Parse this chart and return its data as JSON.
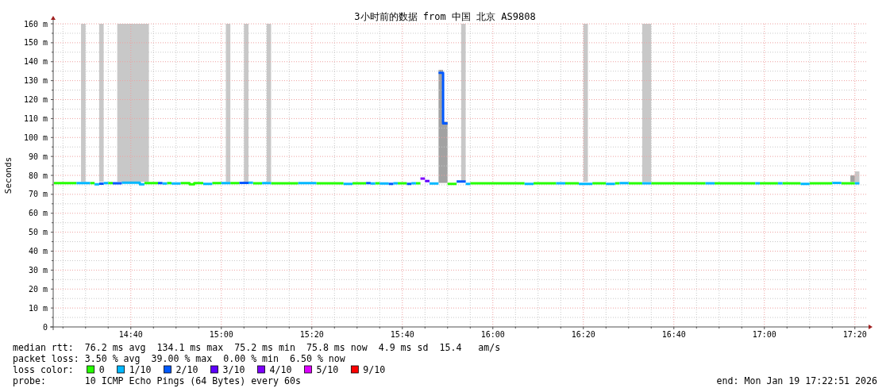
{
  "chart_data": {
    "type": "line",
    "title": "3小时前的数据 from 中国 北京 AS9808",
    "ylabel": "Seconds",
    "xlim": [
      14.3808,
      17.3808
    ],
    "ylim": [
      0,
      160
    ],
    "xticks": [
      {
        "value": 14.4167,
        "label": null
      },
      {
        "value": 14.5,
        "label": null
      },
      {
        "value": 14.5833,
        "label": null
      },
      {
        "value": 14.6667,
        "label": "14:40"
      },
      {
        "value": 14.75,
        "label": null
      },
      {
        "value": 14.8333,
        "label": null
      },
      {
        "value": 14.9167,
        "label": null
      },
      {
        "value": 15,
        "label": "15:00"
      },
      {
        "value": 15.0833,
        "label": null
      },
      {
        "value": 15.1667,
        "label": null
      },
      {
        "value": 15.25,
        "label": null
      },
      {
        "value": 15.3333,
        "label": "15:20"
      },
      {
        "value": 15.4167,
        "label": null
      },
      {
        "value": 15.5,
        "label": null
      },
      {
        "value": 15.5833,
        "label": null
      },
      {
        "value": 15.6667,
        "label": "15:40"
      },
      {
        "value": 15.75,
        "label": null
      },
      {
        "value": 15.8333,
        "label": null
      },
      {
        "value": 15.9167,
        "label": null
      },
      {
        "value": 16,
        "label": "16:00"
      },
      {
        "value": 16.0833,
        "label": null
      },
      {
        "value": 16.1667,
        "label": null
      },
      {
        "value": 16.25,
        "label": null
      },
      {
        "value": 16.3333,
        "label": "16:20"
      },
      {
        "value": 16.4167,
        "label": null
      },
      {
        "value": 16.5,
        "label": null
      },
      {
        "value": 16.5833,
        "label": null
      },
      {
        "value": 16.6667,
        "label": "16:40"
      },
      {
        "value": 16.75,
        "label": null
      },
      {
        "value": 16.8333,
        "label": null
      },
      {
        "value": 16.9167,
        "label": null
      },
      {
        "value": 17,
        "label": "17:00"
      },
      {
        "value": 17.0833,
        "label": null
      },
      {
        "value": 17.1667,
        "label": null
      },
      {
        "value": 17.25,
        "label": null
      },
      {
        "value": 17.3333,
        "label": "17:20"
      }
    ],
    "yticks": [
      0,
      {
        "value": 5,
        "label": null
      },
      {
        "value": 10,
        "label": "10 m"
      },
      {
        "value": 15,
        "label": null
      },
      {
        "value": 20,
        "label": "20 m"
      },
      {
        "value": 25,
        "label": null
      },
      {
        "value": 30,
        "label": "30 m"
      },
      {
        "value": 35,
        "label": null
      },
      {
        "value": 40,
        "label": "40 m"
      },
      {
        "value": 45,
        "label": null
      },
      {
        "value": 50,
        "label": "50 m"
      },
      {
        "value": 55,
        "label": null
      },
      {
        "value": 60,
        "label": "60 m"
      },
      {
        "value": 65,
        "label": null
      },
      {
        "value": 70,
        "label": "70 m"
      },
      {
        "value": 75,
        "label": null
      },
      {
        "value": 80,
        "label": "80 m"
      },
      {
        "value": 85,
        "label": null
      },
      {
        "value": 90,
        "label": "90 m"
      },
      {
        "value": 95,
        "label": null
      },
      {
        "value": 100,
        "label": "100 m"
      },
      {
        "value": 105,
        "label": null
      },
      {
        "value": 110,
        "label": "110 m"
      },
      {
        "value": 115,
        "label": null
      },
      {
        "value": 120,
        "label": "120 m"
      },
      {
        "value": 125,
        "label": null
      },
      {
        "value": 130,
        "label": "130 m"
      },
      {
        "value": 135,
        "label": null
      },
      {
        "value": 140,
        "label": "140 m"
      },
      {
        "value": 145,
        "label": null
      },
      {
        "value": 150,
        "label": "150 m"
      },
      {
        "value": 155,
        "label": null
      },
      {
        "value": 160,
        "label": "160 m"
      }
    ],
    "grid": true,
    "legend": "bottom",
    "legend_title": "loss color:",
    "annotations": [
      "median rtt:  76.2 ms avg  134.1 ms max  75.2 ms min  75.8 ms now  4.9 ms sd  15.4   am/s",
      "packet loss: 3.50 % avg  39.00 % max  0.00 % min  6.50 % now",
      "probe:       10 ICMP Echo Pings (64 Bytes) every 60s",
      "end: Mon Jan 19 17:22:51 2026"
    ],
    "x": [
      14.3833,
      14.4667,
      14.4667,
      14.5167,
      14.5167,
      14.5333,
      14.5333,
      14.55,
      14.55,
      14.5667,
      14.5667,
      14.5833,
      14.5833,
      14.6,
      14.6,
      14.6333,
      14.6333,
      14.7,
      14.7,
      14.7167,
      14.7167,
      14.7667,
      14.7667,
      14.7833,
      14.7833,
      14.8,
      14.8,
      14.8167,
      14.8167,
      14.85,
      14.85,
      14.8833,
      14.8833,
      14.9,
      14.9,
      14.9333,
      14.9333,
      14.9667,
      14.9667,
      15,
      15,
      15.0333,
      15.0333,
      15.0667,
      15.0667,
      15.1,
      15.1,
      15.1167,
      15.1167,
      15.15,
      15.15,
      15.1833,
      15.1833,
      15.2833,
      15.2833,
      15.35,
      15.35,
      15.45,
      15.45,
      15.4833,
      15.4833,
      15.5333,
      15.5333,
      15.55,
      15.55,
      15.5667,
      15.5667,
      15.5833,
      15.5833,
      15.6167,
      15.6167,
      15.6333,
      15.6333,
      15.65,
      15.65,
      15.6833,
      15.6833,
      15.7,
      15.7,
      15.7167,
      15.7167,
      15.7333,
      15.7333,
      15.75,
      15.75,
      15.7667,
      15.7667,
      15.8,
      15.8,
      15.8167,
      15.8167,
      15.8333,
      15.8333,
      15.8667,
      15.8667,
      15.9,
      15.9,
      15.9167,
      15.9167,
      16.1167,
      16.1167,
      16.15,
      16.15,
      16.2333,
      16.2333,
      16.2667,
      16.2667,
      16.3167,
      16.3167,
      16.3667,
      16.3667,
      16.4167,
      16.4167,
      16.45,
      16.45,
      16.4667,
      16.4667,
      16.5,
      16.5,
      16.55,
      16.55,
      16.5833,
      16.5833,
      16.7833,
      16.7833,
      16.8167,
      16.8167,
      16.9667,
      16.9667,
      16.9833,
      16.9833,
      17.05,
      17.05,
      17.0667,
      17.0667,
      17.1333,
      17.1333,
      17.1667,
      17.1667,
      17.25,
      17.25,
      17.2833,
      17.2833,
      17.3333,
      17.3333,
      17.35
    ],
    "series": [
      {
        "color": "#c8c8c8",
        "x": [
          14.4833,
          14.5
        ],
        "values": [
          null,
          null
        ],
        "lower": [
          76.5,
          76.5
        ],
        "upper": [
          160,
          160
        ]
      },
      {
        "color": "#c8c8c8",
        "x": [
          14.55,
          14.5667
        ],
        "values": [
          null,
          null
        ],
        "lower": [
          76.5,
          76.5
        ],
        "upper": [
          160,
          160
        ]
      },
      {
        "color": "#c8c8c8",
        "x": [
          14.6167,
          14.7333
        ],
        "values": [
          null,
          null
        ],
        "lower": [
          76.5,
          76.5
        ],
        "upper": [
          160,
          160
        ]
      },
      {
        "color": "#c8c8c8",
        "x": [
          15.0167,
          15.0333
        ],
        "values": [
          null,
          null
        ],
        "lower": [
          76.5,
          76.5
        ],
        "upper": [
          160,
          160
        ]
      },
      {
        "color": "#c8c8c8",
        "x": [
          15.0833,
          15.1
        ],
        "values": [
          null,
          null
        ],
        "lower": [
          76.5,
          76.5
        ],
        "upper": [
          160,
          160
        ]
      },
      {
        "color": "#c8c8c8",
        "x": [
          15.1667,
          15.1833
        ],
        "values": [
          null,
          null
        ],
        "lower": [
          76.5,
          76.5
        ],
        "upper": [
          160,
          160
        ]
      },
      {
        "color": "#c8c8c8",
        "x": [
          15.8833,
          15.9
        ],
        "values": [
          null,
          null
        ],
        "lower": [
          76.5,
          76.5
        ],
        "upper": [
          160,
          160
        ]
      },
      {
        "color": "#c8c8c8",
        "x": [
          16.3333,
          16.35
        ],
        "values": [
          null,
          null
        ],
        "lower": [
          76.5,
          76.5
        ],
        "upper": [
          160,
          160
        ]
      },
      {
        "color": "#c8c8c8",
        "x": [
          16.55,
          16.5833
        ],
        "values": [
          null,
          null
        ],
        "lower": [
          76.5,
          76.5
        ],
        "upper": [
          160,
          160
        ]
      },
      {
        "color": "#c8c8c8",
        "x": [
          17.3333,
          17.35
        ],
        "values": [
          null,
          null
        ],
        "lower": [
          76.5,
          76.5
        ],
        "upper": [
          82.1,
          82.1
        ]
      },
      {
        "color": "#a2a2a2",
        "x": [
          15.8,
          15.8167,
          15.8167,
          15.8333
        ],
        "values": [
          null,
          null,
          null,
          null
        ],
        "lower": [
          76,
          76,
          76,
          76
        ],
        "upper": [
          135.7,
          135.7,
          108.4,
          108.4
        ]
      },
      {
        "color": "#a2a2a2",
        "x": [
          17.3167,
          17.3333
        ],
        "values": [
          null,
          null
        ],
        "lower": [
          76.5,
          76.5
        ],
        "upper": [
          80,
          80
        ]
      },
      {
        "name": "0",
        "color": "#26ff00",
        "values": [
          75.9,
          75.9,
          null,
          null,
          75.9,
          75.9,
          null,
          null,
          null,
          null,
          null,
          null,
          75.9,
          75.9,
          null,
          null,
          null,
          null,
          null,
          null,
          75.9,
          75.9,
          null,
          null,
          null,
          null,
          75.9,
          75.9,
          null,
          null,
          75.9,
          75.9,
          75.3,
          75.3,
          75.9,
          75.9,
          null,
          null,
          75.9,
          75.9,
          null,
          null,
          75.9,
          75.9,
          null,
          null,
          null,
          null,
          75.8,
          75.8,
          null,
          null,
          75.8,
          75.8,
          null,
          null,
          75.8,
          75.8,
          null,
          null,
          75.8,
          75.8,
          null,
          null,
          null,
          null,
          75.8,
          75.8,
          null,
          null,
          null,
          null,
          null,
          null,
          75.8,
          75.8,
          null,
          null,
          null,
          null,
          75.8,
          75.8,
          null,
          null,
          null,
          null,
          null,
          null,
          null,
          null,
          null,
          null,
          75.5,
          75.5,
          null,
          null,
          null,
          null,
          75.8,
          75.8,
          null,
          null,
          75.8,
          75.8,
          null,
          null,
          75.8,
          75.8,
          null,
          null,
          75.8,
          75.8,
          null,
          null,
          75.8,
          75.8,
          null,
          null,
          75.8,
          75.8,
          null,
          null,
          75.8,
          75.8,
          null,
          null,
          75.8,
          75.8,
          null,
          null,
          75.8,
          75.8,
          null,
          null,
          75.8,
          75.8,
          null,
          null,
          75.8,
          75.8,
          null,
          null,
          75.8,
          75.8,
          null,
          null
        ]
      },
      {
        "name": "1/10",
        "color": "#00b8ff",
        "values": [
          null,
          null,
          75.9,
          75.9,
          null,
          null,
          75.3,
          75.3,
          null,
          null,
          75.9,
          75.9,
          null,
          null,
          null,
          null,
          76.1,
          76.1,
          75.3,
          75.3,
          null,
          null,
          null,
          null,
          75.7,
          75.7,
          null,
          null,
          75.7,
          75.7,
          null,
          null,
          null,
          null,
          null,
          null,
          75.5,
          75.5,
          null,
          null,
          75.9,
          75.9,
          null,
          null,
          null,
          null,
          76.1,
          76.1,
          null,
          null,
          75.9,
          75.9,
          null,
          null,
          75.9,
          75.9,
          null,
          null,
          75.5,
          75.5,
          null,
          null,
          null,
          null,
          75.7,
          75.7,
          null,
          null,
          75.7,
          75.7,
          null,
          null,
          75.8,
          75.8,
          null,
          null,
          null,
          null,
          75.8,
          75.8,
          null,
          null,
          null,
          null,
          null,
          null,
          75.7,
          75.7,
          null,
          null,
          null,
          null,
          null,
          null,
          null,
          null,
          75.5,
          75.5,
          null,
          null,
          75.5,
          75.5,
          null,
          null,
          75.8,
          75.8,
          null,
          null,
          75.5,
          75.5,
          null,
          null,
          75.5,
          75.5,
          null,
          null,
          75.9,
          75.9,
          null,
          null,
          75.8,
          75.8,
          null,
          null,
          75.8,
          75.8,
          null,
          null,
          75.8,
          75.8,
          null,
          null,
          75.8,
          75.8,
          null,
          null,
          75.5,
          75.5,
          null,
          null,
          76,
          76,
          null,
          null,
          75.8,
          75.8
        ]
      },
      {
        "name": "2/10",
        "color": "#0059ff",
        "values": [
          null,
          null,
          null,
          null,
          null,
          null,
          null,
          null,
          75.6,
          75.6,
          null,
          null,
          null,
          null,
          75.8,
          75.8,
          null,
          null,
          null,
          null,
          null,
          null,
          75.9,
          75.9,
          null,
          null,
          null,
          null,
          null,
          null,
          null,
          null,
          null,
          null,
          null,
          null,
          null,
          null,
          null,
          null,
          null,
          null,
          null,
          null,
          76,
          76,
          null,
          null,
          null,
          null,
          null,
          null,
          null,
          null,
          null,
          null,
          null,
          null,
          null,
          null,
          null,
          null,
          75.9,
          75.9,
          null,
          null,
          null,
          null,
          null,
          null,
          75.5,
          75.5,
          null,
          null,
          null,
          null,
          75.5,
          75.5,
          null,
          null,
          null,
          null,
          null,
          null,
          null,
          null,
          null,
          null,
          134.1,
          134.1,
          107.4,
          107.4,
          null,
          null,
          76.8,
          76.8,
          null,
          null,
          null,
          null,
          null,
          null,
          null,
          null,
          null,
          null,
          null,
          null,
          null,
          null,
          null,
          null,
          null,
          null,
          null,
          null,
          null,
          null,
          null,
          null,
          null,
          null,
          null,
          null,
          null,
          null,
          null,
          null,
          null,
          null,
          null,
          null,
          null,
          null,
          null,
          null,
          null,
          null,
          null,
          null,
          null,
          null,
          null,
          null,
          null,
          null
        ]
      },
      {
        "name": "3/10",
        "color": "#5e00ff",
        "values": [
          null,
          null,
          null,
          null,
          null,
          null,
          null,
          null,
          null,
          null,
          null,
          null,
          null,
          null,
          null,
          null,
          null,
          null,
          null,
          null,
          null,
          null,
          null,
          null,
          null,
          null,
          null,
          null,
          null,
          null,
          null,
          null,
          null,
          null,
          null,
          null,
          null,
          null,
          null,
          null,
          null,
          null,
          null,
          null,
          null,
          null,
          null,
          null,
          null,
          null,
          null,
          null,
          null,
          null,
          null,
          null,
          null,
          null,
          null,
          null,
          null,
          null,
          null,
          null,
          null,
          null,
          null,
          null,
          null,
          null,
          null,
          null,
          null,
          null,
          null,
          null,
          null,
          null,
          null,
          null,
          null,
          null,
          null,
          null,
          77,
          77,
          null,
          null,
          null,
          null,
          null,
          null,
          null,
          null,
          null,
          null,
          null,
          null,
          null,
          null,
          null,
          null,
          null,
          null,
          null,
          null,
          null,
          null,
          null,
          null,
          null,
          null,
          null,
          null,
          null,
          null,
          null,
          null,
          null,
          null,
          null,
          null,
          null,
          null,
          null,
          null,
          null,
          null,
          null,
          null,
          null,
          null,
          null,
          null,
          null,
          null,
          null,
          null,
          null,
          null,
          null,
          null,
          null,
          null,
          null,
          null
        ]
      },
      {
        "name": "4/10",
        "color": "#7e00ff",
        "values": [
          null,
          null,
          null,
          null,
          null,
          null,
          null,
          null,
          null,
          null,
          null,
          null,
          null,
          null,
          null,
          null,
          null,
          null,
          null,
          null,
          null,
          null,
          null,
          null,
          null,
          null,
          null,
          null,
          null,
          null,
          null,
          null,
          null,
          null,
          null,
          null,
          null,
          null,
          null,
          null,
          null,
          null,
          null,
          null,
          null,
          null,
          null,
          null,
          null,
          null,
          null,
          null,
          null,
          null,
          null,
          null,
          null,
          null,
          null,
          null,
          null,
          null,
          null,
          null,
          null,
          null,
          null,
          null,
          null,
          null,
          null,
          null,
          null,
          null,
          null,
          null,
          null,
          null,
          null,
          null,
          null,
          null,
          78.3,
          78.3,
          null,
          null,
          null,
          null,
          null,
          null,
          null,
          null,
          null,
          null,
          null,
          null,
          null,
          null,
          null,
          null,
          null,
          null,
          null,
          null,
          null,
          null,
          null,
          null,
          null,
          null,
          null,
          null,
          null,
          null,
          null,
          null,
          null,
          null,
          null,
          null,
          null,
          null,
          null,
          null,
          null,
          null,
          null,
          null,
          null,
          null,
          null,
          null,
          null,
          null,
          null,
          null,
          null,
          null,
          null,
          null,
          null,
          null,
          null,
          null,
          null,
          null
        ]
      },
      {
        "name": "5/10",
        "color": "#dd00ff",
        "values": [
          null,
          null,
          null,
          null,
          null,
          null,
          null,
          null,
          null,
          null,
          null,
          null,
          null,
          null,
          null,
          null,
          null,
          null,
          null,
          null,
          null,
          null,
          null,
          null,
          null,
          null,
          null,
          null,
          null,
          null,
          null,
          null,
          null,
          null,
          null,
          null,
          null,
          null,
          null,
          null,
          null,
          null,
          null,
          null,
          null,
          null,
          null,
          null,
          null,
          null,
          null,
          null,
          null,
          null,
          null,
          null,
          null,
          null,
          null,
          null,
          null,
          null,
          null,
          null,
          null,
          null,
          null,
          null,
          null,
          null,
          null,
          null,
          null,
          null,
          null,
          null,
          null,
          null,
          null,
          null,
          null,
          null,
          null,
          null,
          null,
          null,
          null,
          null,
          null,
          null,
          null,
          null,
          null,
          null,
          null,
          null,
          null,
          null,
          null,
          null,
          null,
          null,
          null,
          null,
          null,
          null,
          null,
          null,
          null,
          null,
          null,
          null,
          null,
          null,
          null,
          null,
          null,
          null,
          null,
          null,
          null,
          null,
          null,
          null,
          null,
          null,
          null,
          null,
          null,
          null,
          null,
          null,
          null,
          null,
          null,
          null,
          null,
          null,
          null,
          null,
          null,
          null,
          null,
          null,
          null,
          null
        ]
      },
      {
        "name": "9/10",
        "color": "#ff0000",
        "values": [
          null,
          null,
          null,
          null,
          null,
          null,
          null,
          null,
          null,
          null,
          null,
          null,
          null,
          null,
          null,
          null,
          null,
          null,
          null,
          null,
          null,
          null,
          null,
          null,
          null,
          null,
          null,
          null,
          null,
          null,
          null,
          null,
          null,
          null,
          null,
          null,
          null,
          null,
          null,
          null,
          null,
          null,
          null,
          null,
          null,
          null,
          null,
          null,
          null,
          null,
          null,
          null,
          null,
          null,
          null,
          null,
          null,
          null,
          null,
          null,
          null,
          null,
          null,
          null,
          null,
          null,
          null,
          null,
          null,
          null,
          null,
          null,
          null,
          null,
          null,
          null,
          null,
          null,
          null,
          null,
          null,
          null,
          null,
          null,
          null,
          null,
          null,
          null,
          null,
          null,
          null,
          null,
          null,
          null,
          null,
          null,
          null,
          null,
          null,
          null,
          null,
          null,
          null,
          null,
          null,
          null,
          null,
          null,
          null,
          null,
          null,
          null,
          null,
          null,
          null,
          null,
          null,
          null,
          null,
          null,
          null,
          null,
          null,
          null,
          null,
          null,
          null,
          null,
          null,
          null,
          null,
          null,
          null,
          null,
          null,
          null,
          null,
          null,
          null,
          null,
          null,
          null,
          null,
          null,
          null,
          null
        ]
      }
    ]
  }
}
